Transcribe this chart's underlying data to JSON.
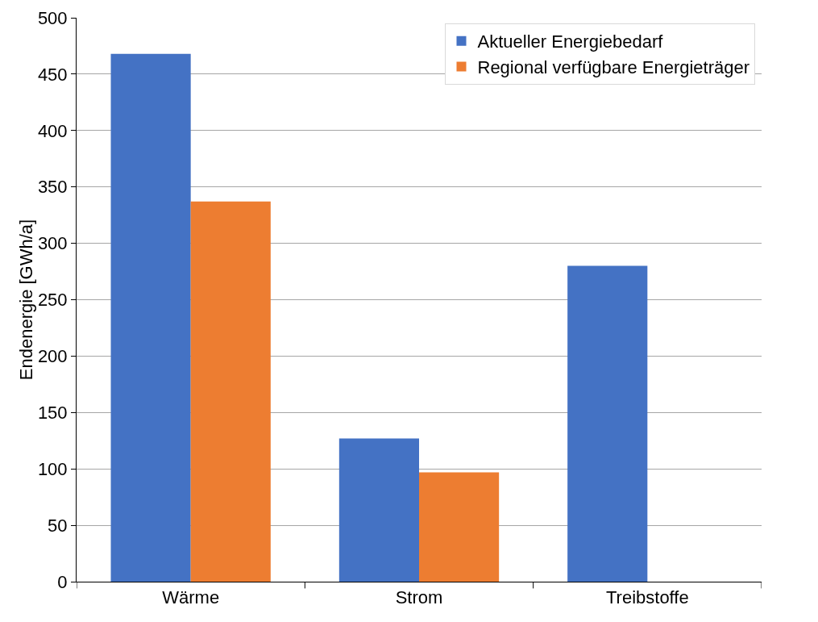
{
  "chart_data": {
    "type": "bar",
    "ylabel": "Endenergie [GWh/a]",
    "categories": [
      "Wärme",
      "Strom",
      "Treibstoffe"
    ],
    "series": [
      {
        "name": "Aktueller Energiebedarf",
        "color": "#4472c4",
        "values": [
          468,
          127,
          280
        ]
      },
      {
        "name": "Regional verfügbare Energieträger",
        "color": "#ed7d31",
        "values": [
          337,
          97,
          null
        ]
      }
    ],
    "ylim": [
      0,
      500
    ],
    "yticks": [
      0,
      50,
      100,
      150,
      200,
      250,
      300,
      350,
      400,
      450,
      500
    ],
    "grid": "y",
    "legend": "top right"
  }
}
